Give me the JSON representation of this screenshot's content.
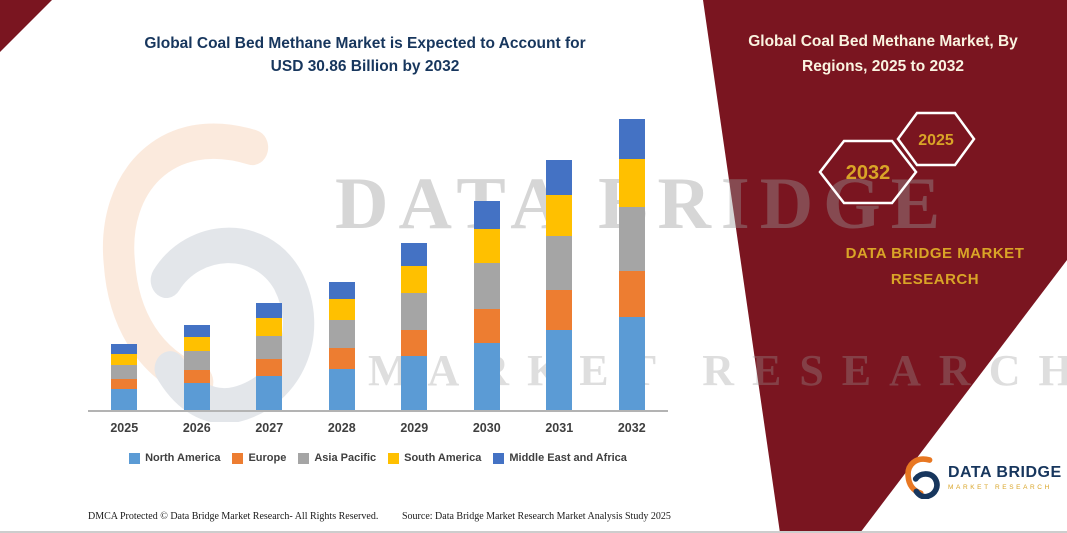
{
  "titles": {
    "left_line1": "Global Coal Bed Methane Market is Expected to Account for",
    "left_line2": "USD 30.86 Billion by 2032",
    "right": "Global Coal Bed Methane Market, By Regions, 2025 to 2032"
  },
  "ribbon": {
    "badge_back": "2032",
    "badge_front": "2025",
    "brand_line1": "DATA BRIDGE MARKET",
    "brand_line2": "RESEARCH"
  },
  "watermark": {
    "line1": "DATA BRIDGE",
    "line2": "MARKET RESEARCH"
  },
  "footer": {
    "dmca": "DMCA Protected © Data Bridge Market Research-  All Rights Reserved.",
    "source": "Source: Data Bridge Market Research  Market Analysis Study 2025",
    "logo_name": "DATA BRIDGE",
    "logo_tag": "MARKET RESEARCH"
  },
  "colors": {
    "ribbon_maroon": "#7A1520",
    "title_blue": "#17365D",
    "gold": "#D9A427",
    "logo_navy": "#17365D",
    "logo_orange": "#E87722"
  },
  "chart_data": {
    "type": "bar",
    "stacked": true,
    "title": "Global Coal Bed Methane Market is Expected to Account for USD 30.86 Billion by 2032",
    "units": "USD Billion",
    "categories": [
      "2025",
      "2026",
      "2027",
      "2028",
      "2029",
      "2030",
      "2031",
      "2032"
    ],
    "series": [
      {
        "name": "North America",
        "color": "#5B9BD5",
        "values": [
          2.2,
          2.9,
          3.6,
          4.4,
          5.7,
          7.1,
          8.5,
          9.9
        ]
      },
      {
        "name": "Europe",
        "color": "#ED7D31",
        "values": [
          1.1,
          1.4,
          1.8,
          2.2,
          2.8,
          3.6,
          4.2,
          4.9
        ]
      },
      {
        "name": "Asia Pacific",
        "color": "#A5A5A5",
        "values": [
          1.5,
          2.0,
          2.5,
          3.0,
          3.9,
          4.9,
          5.8,
          6.8
        ]
      },
      {
        "name": "South America",
        "color": "#FFC000",
        "values": [
          1.2,
          1.5,
          1.9,
          2.2,
          2.9,
          3.6,
          4.3,
          5.0
        ]
      },
      {
        "name": "Middle East and Africa",
        "color": "#4472C4",
        "values": [
          1.0,
          1.2,
          1.6,
          1.8,
          2.4,
          3.0,
          3.7,
          4.26
        ]
      }
    ],
    "totals": [
      7.0,
      9.0,
      11.4,
      13.6,
      17.7,
      22.2,
      26.5,
      30.86
    ],
    "xlabel": "",
    "ylabel": "",
    "ylim": [
      0,
      31
    ],
    "grid": false,
    "y_axis_visible": false,
    "legend_position": "bottom"
  }
}
